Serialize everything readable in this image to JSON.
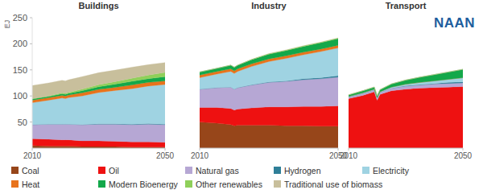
{
  "logo": "NAAN",
  "chart_data": [
    {
      "type": "area",
      "title": "Buildings",
      "stacked": true,
      "y_label": "EJ",
      "legend": "bottom",
      "x": [
        2010,
        2015,
        2019,
        2020,
        2021,
        2025,
        2030,
        2035,
        2040,
        2045,
        2050
      ],
      "xlim": [
        2010,
        2050
      ],
      "xticks": [
        2010,
        2050
      ],
      "ylim": [
        0,
        250
      ],
      "yticks": [
        50,
        100,
        150,
        200,
        250
      ],
      "series": [
        {
          "name": "Coal",
          "color": "#97461a",
          "values": [
            5,
            4,
            4,
            4,
            4,
            3,
            3,
            3,
            2,
            2,
            2
          ]
        },
        {
          "name": "Oil",
          "color": "#ee1111",
          "values": [
            13,
            13,
            12,
            12,
            12,
            11,
            11,
            10,
            10,
            10,
            9
          ]
        },
        {
          "name": "Natural gas",
          "color": "#b6a7d4",
          "values": [
            27,
            29,
            30,
            30,
            30,
            31,
            32,
            33,
            33,
            34,
            34
          ]
        },
        {
          "name": "Hydrogen",
          "color": "#2f7f98",
          "values": [
            0,
            0,
            0,
            0,
            0,
            0,
            0.5,
            0.5,
            1,
            1,
            1
          ]
        },
        {
          "name": "Electricity",
          "color": "#9fd3e2",
          "values": [
            42,
            46,
            50,
            49,
            51,
            55,
            60,
            64,
            68,
            72,
            76
          ]
        },
        {
          "name": "Heat",
          "color": "#e8731c",
          "values": [
            5,
            5,
            5,
            5,
            5,
            6,
            6,
            6,
            7,
            7,
            7
          ]
        },
        {
          "name": "Modern Bioenergy",
          "color": "#13a84a",
          "values": [
            2,
            2,
            3,
            3,
            3,
            4,
            5,
            6,
            7,
            7,
            8
          ]
        },
        {
          "name": "Other renewables",
          "color": "#8fd05a",
          "values": [
            1,
            1,
            2,
            2,
            2,
            3,
            4,
            5,
            6,
            7,
            8
          ]
        },
        {
          "name": "Traditional use of biomass",
          "color": "#c8bf9c",
          "values": [
            25,
            25,
            24,
            24,
            24,
            24,
            23,
            22,
            21,
            20,
            19
          ]
        }
      ]
    },
    {
      "type": "area",
      "title": "Industry",
      "stacked": true,
      "tick_labels": "x",
      "x": [
        2010,
        2015,
        2019,
        2020,
        2021,
        2025,
        2030,
        2035,
        2040,
        2045,
        2050
      ],
      "xlim": [
        2010,
        2050
      ],
      "xticks": [
        2010,
        2050
      ],
      "ylim": [
        0,
        250
      ],
      "yticks": [
        50,
        100,
        150,
        200,
        250
      ],
      "series": [
        {
          "name": "Coal",
          "color": "#97461a",
          "values": [
            50,
            48,
            45,
            43,
            44,
            44,
            44,
            43,
            43,
            42,
            42
          ]
        },
        {
          "name": "Oil",
          "color": "#ee1111",
          "values": [
            28,
            30,
            31,
            30,
            31,
            33,
            35,
            36,
            37,
            38,
            39
          ]
        },
        {
          "name": "Natural gas",
          "color": "#b6a7d4",
          "values": [
            35,
            38,
            41,
            40,
            41,
            44,
            47,
            49,
            51,
            53,
            55
          ]
        },
        {
          "name": "Hydrogen",
          "color": "#2f7f98",
          "values": [
            0,
            0,
            0,
            0,
            0,
            0.5,
            1,
            1,
            2,
            2,
            3
          ]
        },
        {
          "name": "Electricity",
          "color": "#9fd3e2",
          "values": [
            22,
            26,
            30,
            30,
            31,
            35,
            39,
            43,
            46,
            50,
            53
          ]
        },
        {
          "name": "Heat",
          "color": "#e8731c",
          "values": [
            5,
            5,
            5,
            5,
            5,
            5,
            5,
            5,
            5,
            5,
            5
          ]
        },
        {
          "name": "Modern Bioenergy",
          "color": "#13a84a",
          "values": [
            6,
            6,
            7,
            7,
            7,
            8,
            9,
            10,
            11,
            12,
            13
          ]
        },
        {
          "name": "Other renewables",
          "color": "#8fd05a",
          "values": [
            0,
            0,
            0,
            0,
            0,
            0.5,
            1,
            1,
            1,
            1,
            1
          ]
        },
        {
          "name": "Traditional use of biomass",
          "color": "#c8bf9c",
          "values": [
            0,
            0,
            0,
            0,
            0,
            0,
            0,
            0,
            0,
            0,
            0
          ]
        }
      ]
    },
    {
      "type": "area",
      "title": "Transport",
      "stacked": true,
      "tick_labels": "x",
      "x": [
        2010,
        2015,
        2019,
        2020,
        2021,
        2025,
        2030,
        2035,
        2040,
        2045,
        2050
      ],
      "xlim": [
        2010,
        2050
      ],
      "xticks": [
        2010,
        2050
      ],
      "ylim": [
        0,
        250
      ],
      "yticks": [
        50,
        100,
        150,
        200,
        250
      ],
      "series": [
        {
          "name": "Coal",
          "color": "#97461a",
          "values": [
            0,
            0,
            0,
            0,
            0,
            0,
            0,
            0,
            0,
            0,
            0
          ]
        },
        {
          "name": "Oil",
          "color": "#ee1111",
          "values": [
            95,
            101,
            108,
            92,
            103,
            110,
            113,
            115,
            116,
            117,
            118
          ]
        },
        {
          "name": "Natural gas",
          "color": "#b6a7d4",
          "values": [
            3,
            4,
            4,
            4,
            4,
            5,
            6,
            6,
            7,
            7,
            7
          ]
        },
        {
          "name": "Hydrogen",
          "color": "#2f7f98",
          "values": [
            0,
            0,
            0,
            0,
            0,
            0,
            0.5,
            1,
            1,
            2,
            2
          ]
        },
        {
          "name": "Electricity",
          "color": "#9fd3e2",
          "values": [
            1,
            1,
            1,
            1,
            1,
            2,
            3,
            4,
            5,
            6,
            8
          ]
        },
        {
          "name": "Heat",
          "color": "#e8731c",
          "values": [
            0,
            0,
            0,
            0,
            0,
            0,
            0,
            0,
            0,
            0,
            0
          ]
        },
        {
          "name": "Modern Bioenergy",
          "color": "#13a84a",
          "values": [
            3,
            4,
            4,
            3,
            4,
            6,
            8,
            10,
            12,
            14,
            16
          ]
        },
        {
          "name": "Other renewables",
          "color": "#8fd05a",
          "values": [
            0,
            0,
            0,
            0,
            0,
            0,
            0,
            0,
            0,
            0,
            0
          ]
        },
        {
          "name": "Traditional use of biomass",
          "color": "#c8bf9c",
          "values": [
            0,
            0,
            0,
            0,
            0,
            0,
            0,
            0,
            0,
            0,
            0
          ]
        }
      ]
    }
  ]
}
